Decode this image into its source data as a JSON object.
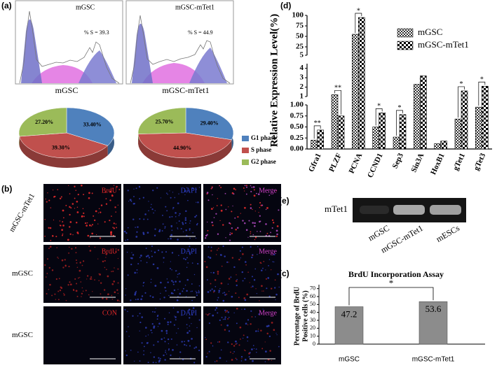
{
  "panel_labels": {
    "a": "(a)",
    "b": "(b)",
    "c": "(c)",
    "d": "(d)",
    "e": "(e)"
  },
  "flow": [
    {
      "title": "mGSC",
      "annotation": "% S = 39.3"
    },
    {
      "title": "mGSC-mTet1",
      "annotation": "% S = 44.9"
    }
  ],
  "microscopy": {
    "rows": [
      {
        "label": "mGSC-mTet1",
        "channels": [
          "BrdU",
          "DAPI",
          "Merge"
        ]
      },
      {
        "label": "mGSC",
        "channels": [
          "BrdU",
          "DAPI",
          "Merge"
        ]
      },
      {
        "label": "mGSC",
        "channels": [
          "CON",
          "DAPI",
          "Merge"
        ]
      }
    ]
  },
  "gel": {
    "band_label": "mTet1",
    "lanes": [
      "mGSC",
      "mGSC-mTet1",
      "mESCs"
    ]
  },
  "chart_data": [
    {
      "type": "pie",
      "title": "mGSC",
      "categories": [
        "G1 phase",
        "S phase",
        "G2 phase"
      ],
      "values": [
        33.4,
        39.3,
        27.2
      ],
      "value_labels": [
        "33.40%",
        "39.30%",
        "27.20%"
      ],
      "colors": [
        "#4f81bd",
        "#c0504d",
        "#9bbb59"
      ],
      "legend": false
    },
    {
      "type": "pie",
      "title": "mGSC-mTet1",
      "categories": [
        "G1 phase",
        "S phase",
        "G2 phase"
      ],
      "values": [
        29.4,
        44.9,
        25.7
      ],
      "value_labels": [
        "29.40%",
        "44.90%",
        "25.70%"
      ],
      "colors": [
        "#4f81bd",
        "#c0504d",
        "#9bbb59"
      ],
      "legend": "right"
    },
    {
      "type": "broken-bar",
      "y_label": "Relative Expression Level(%)",
      "categories": [
        "Gfra1",
        "PLZF",
        "PCNA",
        "CCND1",
        "Sep3",
        "Sin3A",
        "HoxB1",
        "gTet1",
        "gTet3"
      ],
      "series": [
        {
          "name": "mGSC",
          "color": "#303030",
          "values": [
            0.2,
            1.2,
            55,
            0.5,
            0.27,
            2.3,
            0.12,
            0.68,
            0.95
          ]
        },
        {
          "name": "mGSC-mTet1",
          "color": "#000000",
          "values": [
            0.43,
            0.75,
            95,
            0.82,
            0.78,
            3.2,
            0.18,
            1.6,
            2.1
          ]
        }
      ],
      "y_segments": [
        {
          "ylim": [
            0,
            1
          ],
          "yticks": [
            {
              "value": 0,
              "label": "0.00"
            },
            {
              "value": 0.25,
              "label": "0.25"
            },
            {
              "value": 0.5,
              "label": "0.50"
            },
            {
              "value": 0.75,
              "label": "0.75"
            },
            {
              "value": 1,
              "label": "1.00"
            }
          ]
        },
        {
          "ylim": [
            1,
            4.5
          ],
          "yticks": [
            1,
            2,
            3,
            4
          ]
        },
        {
          "ylim": [
            5,
            100
          ],
          "yticks": [
            5,
            25,
            50,
            75,
            100
          ]
        }
      ],
      "significance": [
        "**",
        "**",
        "*",
        "*",
        "*",
        null,
        null,
        "*",
        "*"
      ],
      "legend": "upper right"
    },
    {
      "type": "bar",
      "title": "BrdU Incorporation Assay",
      "y_label": [
        "Percentage of BrdU",
        "Positive cells (%)"
      ],
      "categories": [
        "mGSC",
        "mGSC-mTet1"
      ],
      "values": [
        47.2,
        53.6
      ],
      "color": "#8c8c8c",
      "ylim": [
        0,
        75
      ],
      "yticks": [
        0,
        10,
        20,
        30,
        40,
        50,
        60,
        70
      ],
      "significance": "*"
    }
  ]
}
